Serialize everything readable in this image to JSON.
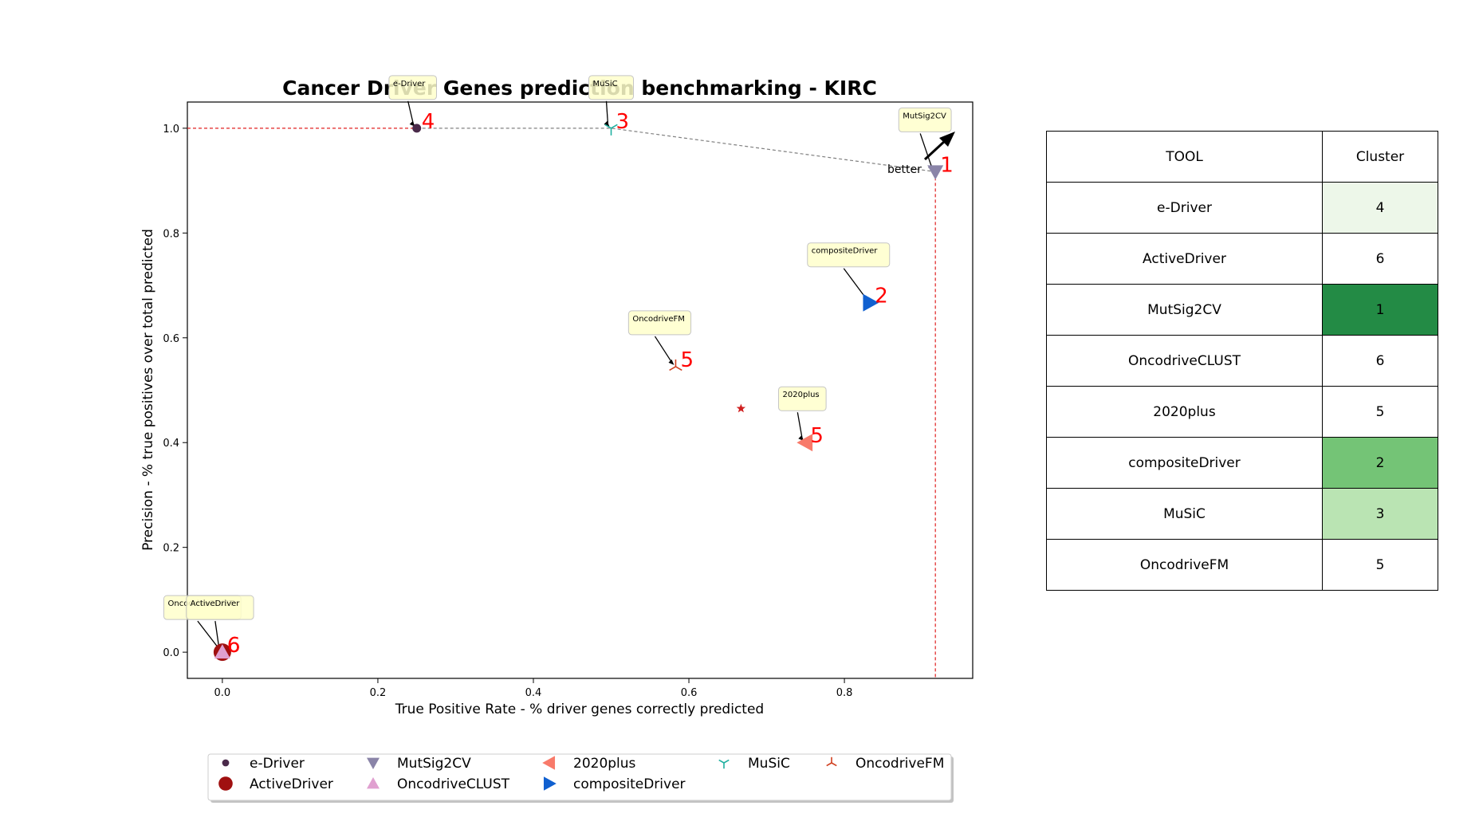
{
  "chart_data": {
    "type": "scatter",
    "title": "Cancer Driver Genes prediction benchmarking - KIRC",
    "xlabel": "True Positive Rate - % driver genes correctly predicted",
    "ylabel": "Precision - % true positives over total predicted",
    "xlim": [
      -0.045,
      0.965
    ],
    "ylim": [
      -0.05,
      1.05
    ],
    "xticks": [
      0.0,
      0.2,
      0.4,
      0.6,
      0.8
    ],
    "yticks": [
      0.0,
      0.2,
      0.4,
      0.6,
      0.8,
      1.0
    ],
    "xtick_labels": [
      "0.0",
      "0.2",
      "0.4",
      "0.6",
      "0.8"
    ],
    "ytick_labels": [
      "0.0",
      "0.2",
      "0.4",
      "0.6",
      "0.8",
      "1.0"
    ],
    "grid": false,
    "legend_position": "bottom",
    "better_label": "better",
    "series": [
      {
        "name": "e-Driver",
        "x": 0.25,
        "y": 1.0,
        "marker": "dot",
        "color": "#4a2a4a",
        "rank": "4",
        "annotation": "e-Driver"
      },
      {
        "name": "ActiveDriver",
        "x": 0.0,
        "y": 0.0,
        "marker": "circle",
        "color": "#a01010",
        "rank": "6",
        "annotation": "ActiveDriver"
      },
      {
        "name": "MutSig2CV",
        "x": 0.917,
        "y": 0.917,
        "marker": "triangle-down",
        "color": "#8a84a8",
        "rank": "1",
        "annotation": "MutSig2CV"
      },
      {
        "name": "OncodriveCLUST",
        "x": 0.0,
        "y": 0.0,
        "marker": "triangle-up",
        "color": "#e0a0d0",
        "rank": "6",
        "annotation": "OncodriveCLUST"
      },
      {
        "name": "2020plus",
        "x": 0.75,
        "y": 0.4,
        "marker": "triangle-left",
        "color": "#f87a6a",
        "rank": "5",
        "annotation": "2020plus"
      },
      {
        "name": "compositeDriver",
        "x": 0.833,
        "y": 0.667,
        "marker": "triangle-right",
        "color": "#1060d0",
        "rank": "2",
        "annotation": "compositeDriver"
      },
      {
        "name": "MuSiC",
        "x": 0.5,
        "y": 1.0,
        "marker": "tri-down",
        "color": "#20b0a0",
        "rank": "3",
        "annotation": "MuSiC"
      },
      {
        "name": "OncodriveFM",
        "x": 0.583,
        "y": 0.545,
        "marker": "tri-up",
        "color": "#d04020",
        "rank": "5",
        "annotation": "OncodriveFM"
      }
    ],
    "extra_point": {
      "x": 0.667,
      "y": 0.465,
      "marker": "star",
      "color": "#d02020"
    },
    "pareto_frontier": [
      [
        0.25,
        1.0
      ],
      [
        0.5,
        1.0
      ],
      [
        0.917,
        0.917
      ]
    ],
    "reference_lines": {
      "horizontal_y": 1.0,
      "vertical_x": 0.917,
      "color": "#e02020"
    }
  },
  "table": {
    "headers": {
      "tool": "TOOL",
      "cluster": "Cluster"
    },
    "rows": [
      {
        "tool": "e-Driver",
        "cluster": "4",
        "color": "#edf7e9"
      },
      {
        "tool": "ActiveDriver",
        "cluster": "6",
        "color": "#ffffff"
      },
      {
        "tool": "MutSig2CV",
        "cluster": "1",
        "color": "#238b45"
      },
      {
        "tool": "OncodriveCLUST",
        "cluster": "6",
        "color": "#ffffff"
      },
      {
        "tool": "2020plus",
        "cluster": "5",
        "color": "#ffffff"
      },
      {
        "tool": "compositeDriver",
        "cluster": "2",
        "color": "#74c476"
      },
      {
        "tool": "MuSiC",
        "cluster": "3",
        "color": "#bae4b3"
      },
      {
        "tool": "OncodriveFM",
        "cluster": "5",
        "color": "#ffffff"
      }
    ]
  }
}
